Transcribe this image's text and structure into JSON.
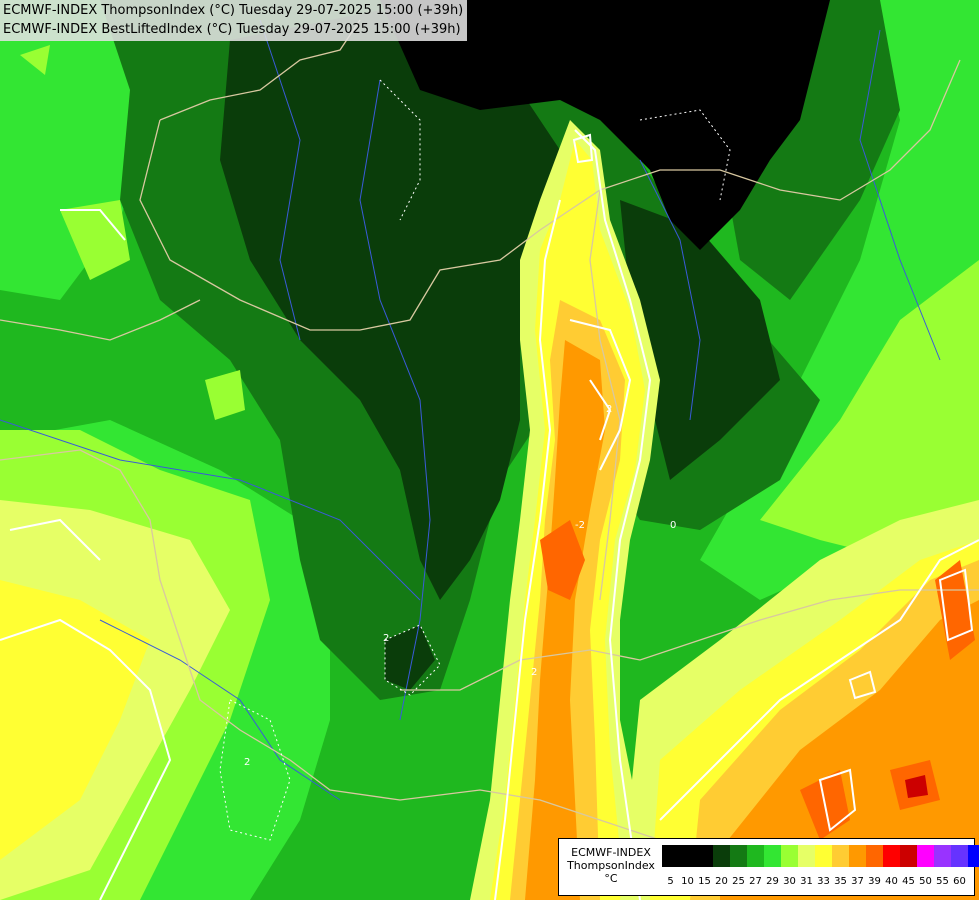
{
  "titles": {
    "line1": "ECMWF-INDEX ThompsonIndex (°C) Tuesday 29-07-2025 15:00 (+39h)",
    "line2": "ECMWF-INDEX BestLiftedIndex (°C) Tuesday 29-07-2025 15:00 (+39h)"
  },
  "legend": {
    "model": "ECMWF-INDEX",
    "parameter": "ThompsonIndex",
    "unit": "°C",
    "ticks": [
      "5",
      "10",
      "15",
      "20",
      "25",
      "27",
      "29",
      "30",
      "31",
      "33",
      "35",
      "37",
      "39",
      "40",
      "45",
      "50",
      "55",
      "60"
    ],
    "colors": [
      "#000000",
      "#000000",
      "#000000",
      "#0a3d0a",
      "#147a14",
      "#1fb81f",
      "#33e633",
      "#99ff33",
      "#e6ff66",
      "#ffff33",
      "#ffcc33",
      "#ff9900",
      "#ff6600",
      "#ff0000",
      "#cc0000",
      "#ff00ff",
      "#9933ff",
      "#6633ff",
      "#0000ff"
    ]
  },
  "colors": {
    "black": "#000000",
    "darkest_green": "#0a3d0a",
    "dark_green": "#147a14",
    "green": "#1fb81f",
    "bright_green": "#33e633",
    "light_green": "#99ff33",
    "pale_yellow": "#e6ff66",
    "yellow": "#ffff33",
    "light_orange": "#ffcc33",
    "orange": "#ff9900",
    "dark_orange": "#ff6600",
    "red": "#ff0000",
    "contour": "#ffffff",
    "border": "#d8c8a0",
    "river": "#3a5bd8"
  },
  "contour_labels": [
    "2",
    "2",
    "2",
    "2",
    "0",
    "-2"
  ]
}
